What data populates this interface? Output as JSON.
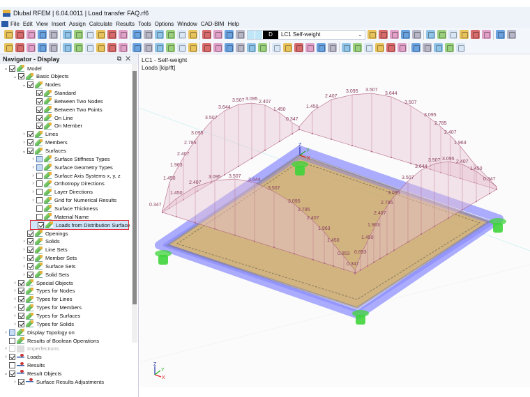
{
  "window": {
    "title": "Dlubal RFEM | 6.04.0011 | Load transfer FAQ.rf6"
  },
  "menu": [
    "File",
    "Edit",
    "View",
    "Insert",
    "Assign",
    "Calculate",
    "Results",
    "Tools",
    "Options",
    "Window",
    "CAD-BIM",
    "Help"
  ],
  "toolbar1": {
    "icons_left": [
      "new-model-icon",
      "open-icon",
      "dlubal-center-icon",
      "webservice-icon",
      "project-icon",
      "save-icon",
      "print-icon",
      "report-icon",
      "document-icon",
      "undo-icon",
      "redo-icon",
      "view-panel-icon",
      "table-icon",
      "navigator-icon",
      "console-icon",
      "calc-icon",
      "mobile-icon",
      "render-icon",
      "block-icon",
      "load-wizard-icon",
      "load-wizard-2-icon"
    ],
    "load_case": {
      "code": "D",
      "name": "LC1  Self-weight"
    },
    "icons_right": [
      "prev-icon",
      "next-icon",
      "filter-icon",
      "result-display-icon",
      "load-icon",
      "member-load-icon",
      "surface-load-icon",
      "solid-icon",
      "table-display-icon",
      "support-icon",
      "dimension-icon",
      "section-icon",
      "grid-icon"
    ]
  },
  "toolbar2": {
    "icons": [
      "node-icon",
      "line-icon",
      "polyline-icon",
      "arc-icon",
      "support-node-icon",
      "support-line-icon",
      "support-surface-icon",
      "surface-icon",
      "solid-icon",
      "opening-icon",
      "member-icon",
      "box-icon",
      "gear-icon",
      "node-load-icon",
      "member-load-icon",
      "surface-load-icon",
      "line-load-icon",
      "move-icon",
      "filter-icon",
      "frame-icon",
      "view-icon",
      "curve-icon",
      "shape-icon",
      "cube-icon",
      "axis-icon",
      "slope-icon",
      "dim1-icon",
      "dim2-icon",
      "dim3-icon",
      "dim4-icon",
      "dim5-icon",
      "star-icon",
      "pin-icon",
      "angle-icon",
      "snap-grid-icon",
      "snap-point-icon",
      "view-iso-icon",
      "view-rotate-icon",
      "view-section-icon",
      "link-icon"
    ]
  },
  "navigator": {
    "title": "Navigator - Display",
    "items": [
      {
        "label": "Model",
        "level": 0,
        "exp": "open",
        "cb": "checked",
        "icon": "green"
      },
      {
        "label": "Basic Objects",
        "level": 1,
        "exp": "open",
        "cb": "checked",
        "icon": "green"
      },
      {
        "label": "Nodes",
        "level": 2,
        "exp": "open",
        "cb": "checked",
        "icon": "green"
      },
      {
        "label": "Standard",
        "level": 3,
        "exp": "none",
        "cb": "checked",
        "icon": "green"
      },
      {
        "label": "Between Two Nodes",
        "level": 3,
        "exp": "none",
        "cb": "checked",
        "icon": "green"
      },
      {
        "label": "Between Two Points",
        "level": 3,
        "exp": "none",
        "cb": "checked",
        "icon": "green"
      },
      {
        "label": "On Line",
        "level": 3,
        "exp": "none",
        "cb": "checked",
        "icon": "green"
      },
      {
        "label": "On Member",
        "level": 3,
        "exp": "none",
        "cb": "checked",
        "icon": "green"
      },
      {
        "label": "Lines",
        "level": 2,
        "exp": "closed",
        "cb": "checked",
        "icon": "green"
      },
      {
        "label": "Members",
        "level": 2,
        "exp": "closed",
        "cb": "checked",
        "icon": "green"
      },
      {
        "label": "Surfaces",
        "level": 2,
        "exp": "open",
        "cb": "checked",
        "icon": "green"
      },
      {
        "label": "Surface Stiffness Types",
        "level": 3,
        "exp": "closed",
        "cb": "partial",
        "icon": "green"
      },
      {
        "label": "Surface Geometry Types",
        "level": 3,
        "exp": "closed",
        "cb": "partial",
        "icon": "green"
      },
      {
        "label": "Surface Axis Systems x, y, z",
        "level": 3,
        "exp": "closed",
        "cb": "unchecked",
        "icon": "green"
      },
      {
        "label": "Orthotropy Directions",
        "level": 3,
        "exp": "closed",
        "cb": "unchecked",
        "icon": "green"
      },
      {
        "label": "Layer Directions",
        "level": 3,
        "exp": "closed",
        "cb": "unchecked",
        "icon": "green"
      },
      {
        "label": "Grid for Numerical Results",
        "level": 3,
        "exp": "closed",
        "cb": "unchecked",
        "icon": "green"
      },
      {
        "label": "Surface Thickness",
        "level": 3,
        "exp": "none",
        "cb": "unchecked",
        "icon": "green"
      },
      {
        "label": "Material Name",
        "level": 3,
        "exp": "none",
        "cb": "unchecked",
        "icon": "green"
      },
      {
        "label": "Loads from Distribution Surface",
        "level": 3,
        "exp": "none",
        "cb": "checked",
        "icon": "green",
        "selected": true
      },
      {
        "label": "Openings",
        "level": 2,
        "exp": "none",
        "cb": "checked",
        "icon": "green"
      },
      {
        "label": "Solids",
        "level": 2,
        "exp": "closed",
        "cb": "checked",
        "icon": "green"
      },
      {
        "label": "Line Sets",
        "level": 2,
        "exp": "closed",
        "cb": "checked",
        "icon": "green"
      },
      {
        "label": "Member Sets",
        "level": 2,
        "exp": "closed",
        "cb": "checked",
        "icon": "green"
      },
      {
        "label": "Surface Sets",
        "level": 2,
        "exp": "closed",
        "cb": "checked",
        "icon": "green"
      },
      {
        "label": "Solid Sets",
        "level": 2,
        "exp": "closed",
        "cb": "checked",
        "icon": "green"
      },
      {
        "label": "Special Objects",
        "level": 1,
        "exp": "closed",
        "cb": "checked",
        "icon": "green"
      },
      {
        "label": "Types for Nodes",
        "level": 1,
        "exp": "closed",
        "cb": "checked",
        "icon": "green"
      },
      {
        "label": "Types for Lines",
        "level": 1,
        "exp": "closed",
        "cb": "checked",
        "icon": "green"
      },
      {
        "label": "Types for Members",
        "level": 1,
        "exp": "closed",
        "cb": "checked",
        "icon": "green"
      },
      {
        "label": "Types for Surfaces",
        "level": 1,
        "exp": "closed",
        "cb": "checked",
        "icon": "green"
      },
      {
        "label": "Types for Solids",
        "level": 1,
        "exp": "closed",
        "cb": "checked",
        "icon": "green"
      },
      {
        "label": "Display Topology on",
        "level": 0,
        "exp": "closed",
        "cb": "partial",
        "icon": "green"
      },
      {
        "label": "Results of Boolean Operations",
        "level": 0,
        "exp": "none",
        "cb": "unchecked",
        "icon": "green"
      },
      {
        "label": "Imperfections",
        "level": 0,
        "exp": "closed",
        "cb": "disabled",
        "icon": "gray",
        "disabled": true
      },
      {
        "label": "Loads",
        "level": 0,
        "exp": "closed",
        "cb": "checked",
        "icon": "load"
      },
      {
        "label": "Results",
        "level": 0,
        "exp": "none",
        "cb": "unchecked",
        "icon": "load"
      },
      {
        "label": "Result Objects",
        "level": 0,
        "exp": "open",
        "cb": "checked",
        "icon": "load"
      },
      {
        "label": "Surface Results Adjustments",
        "level": 1,
        "exp": "closed",
        "cb": "checked",
        "icon": "load"
      }
    ]
  },
  "viewport": {
    "load_case_title": "LC1 - Self-weight",
    "units_label": "Loads [kip/ft]",
    "load_labels": [
      "3.507",
      "3.095",
      "2.407",
      "1.450",
      "0.347",
      "3.644",
      "3.507",
      "3.095",
      "2.785",
      "2.407",
      "1.963",
      "1.450",
      "1.450",
      "0.347",
      "2.407",
      "3.095",
      "3.507",
      "3.644",
      "3.507",
      "3.095",
      "2.785",
      "1.450",
      "2.407",
      "3.095",
      "3.507",
      "3.644",
      "3.507",
      "3.095",
      "2.785",
      "2.407",
      "1.963",
      "3.644",
      "3.507",
      "3.095",
      "2.407",
      "1.450",
      "0.347",
      "3.507",
      "3.095",
      "2.785",
      "2.407",
      "1.963",
      "1.450",
      "0.853",
      "0.347",
      "0.853",
      "1.450",
      "1.963",
      "2.407"
    ],
    "axes": {
      "x": "X",
      "y": "Y",
      "z": "Z"
    },
    "colors": {
      "load": "#b0607f",
      "beam": "#6a6cff",
      "plate": "#c9a76a",
      "support": "#3fd43a"
    }
  }
}
